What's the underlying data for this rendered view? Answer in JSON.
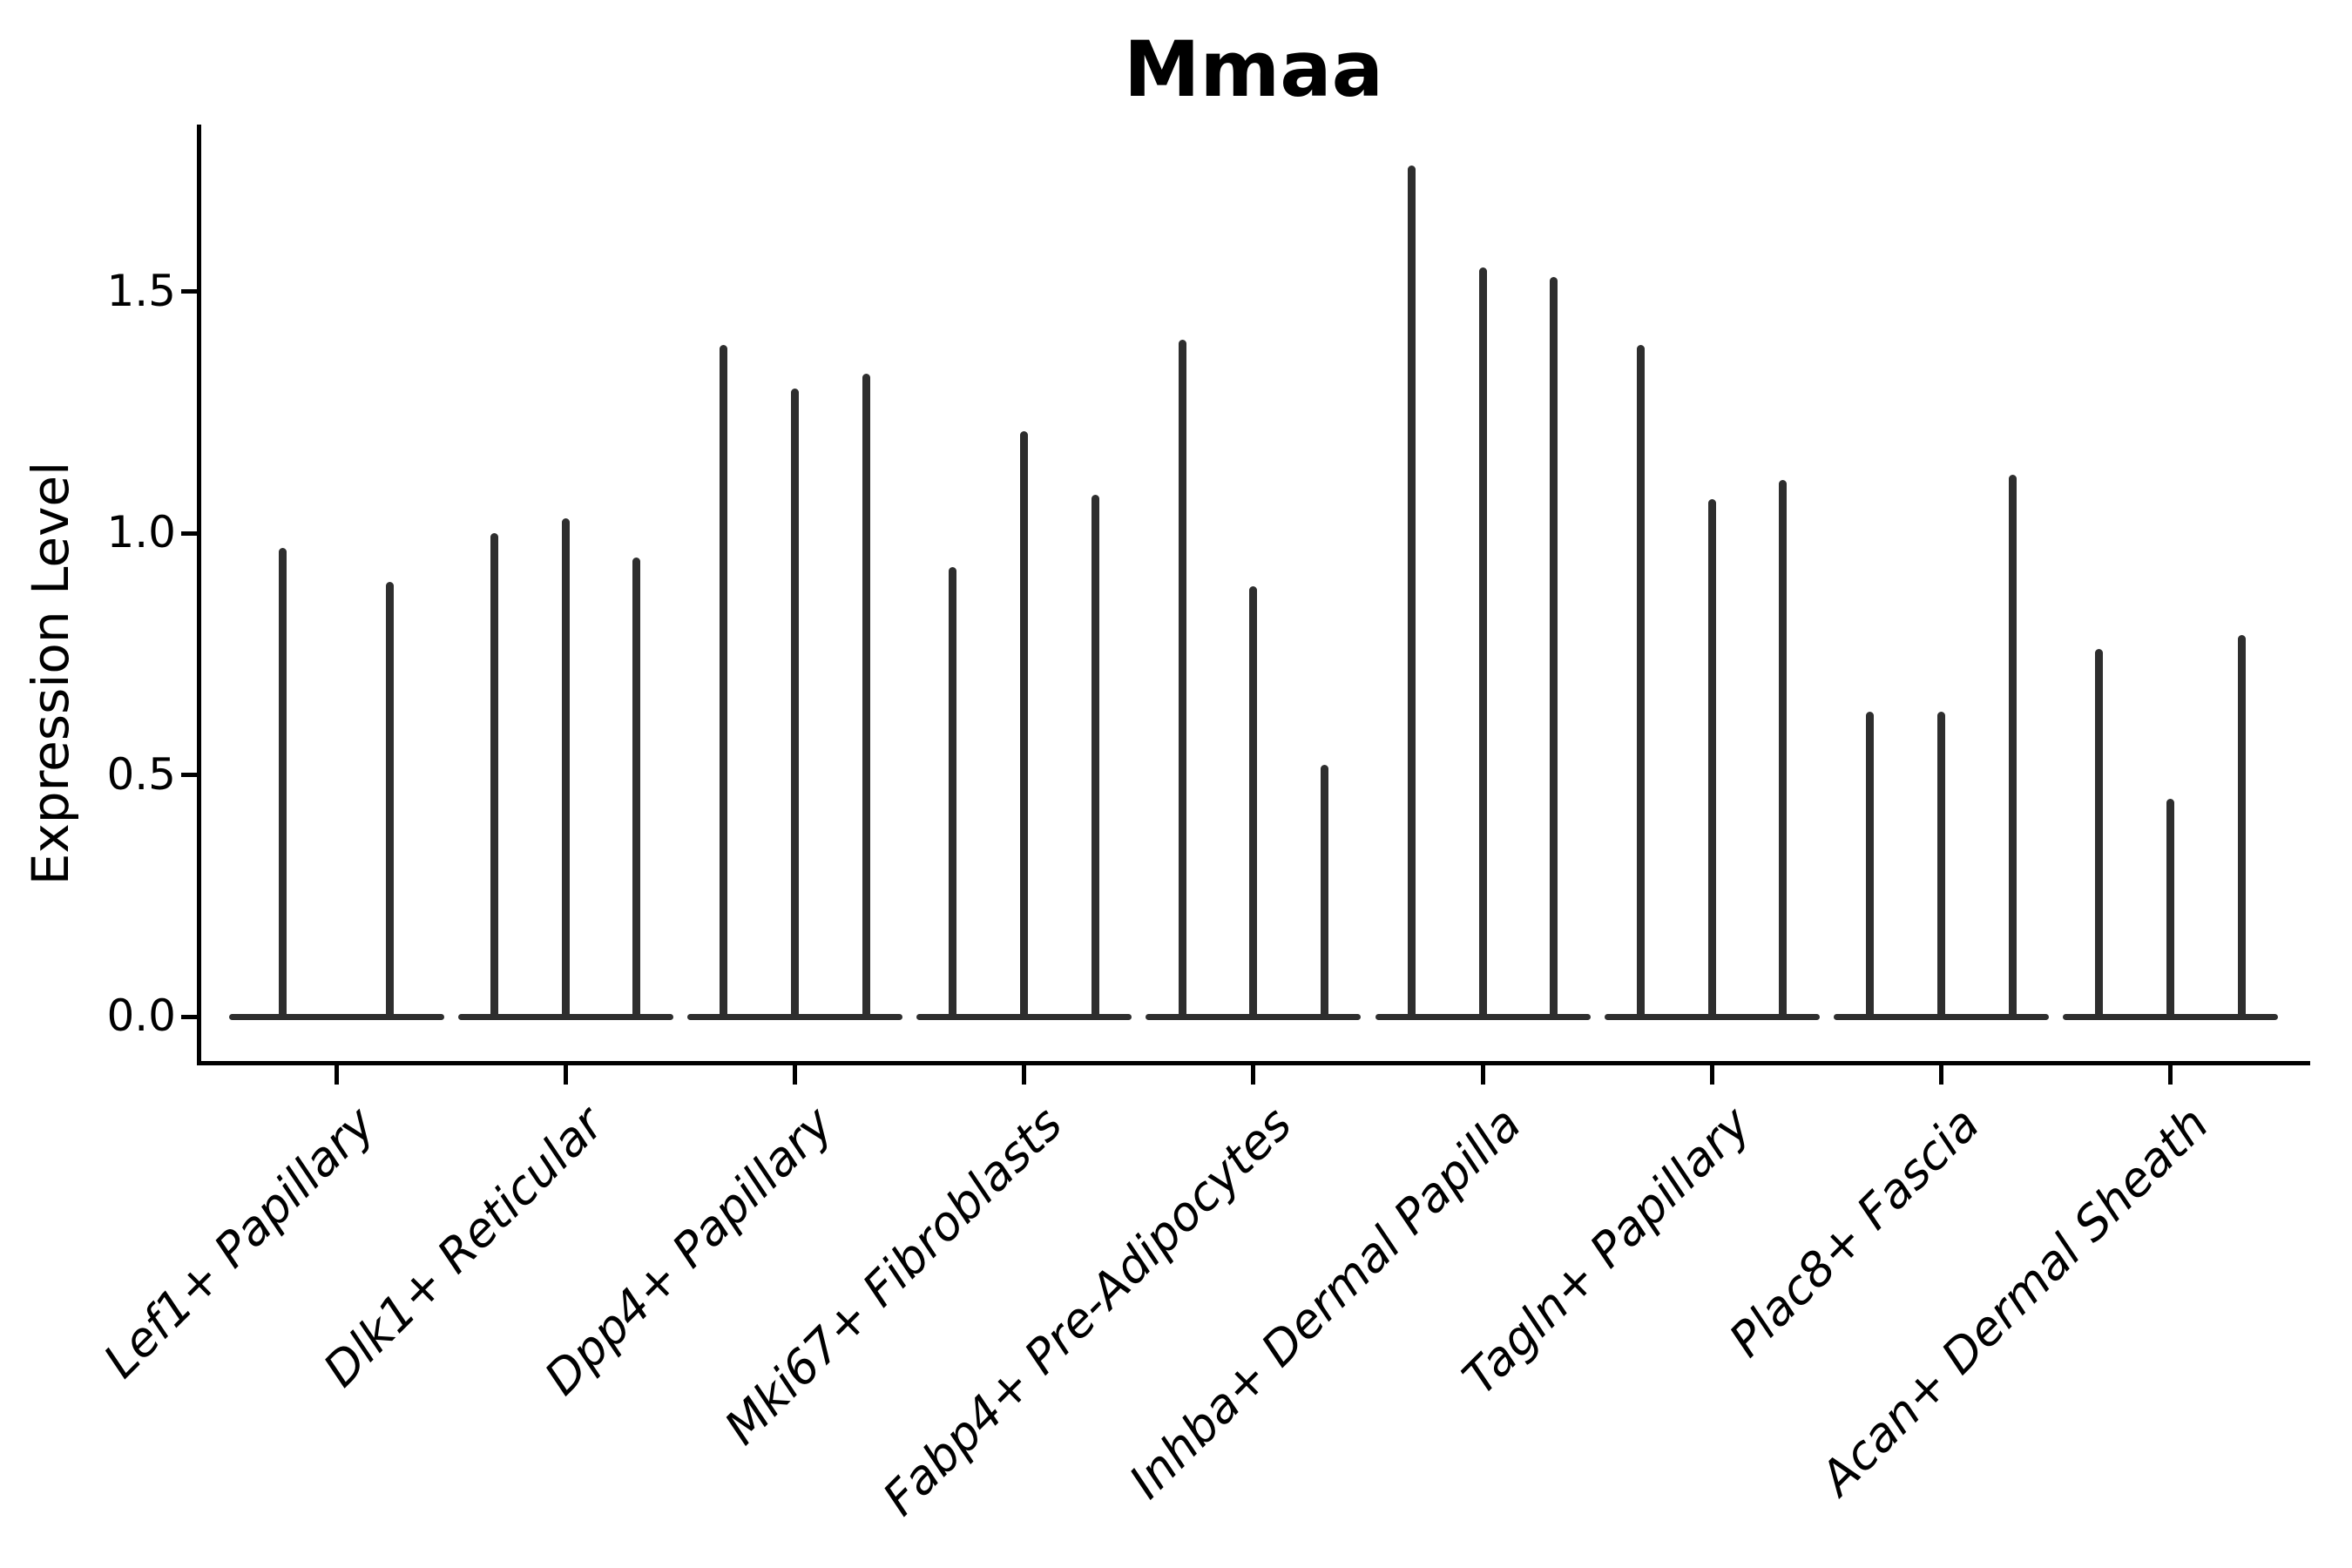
{
  "title": "Mmaa",
  "style": {
    "background": "#ffffff",
    "violin_color": "#2e2e2e",
    "spine_color": "#000000",
    "text_color": "#000000"
  },
  "chart_data": {
    "type": "violin",
    "title": "Mmaa",
    "xlabel": "",
    "ylabel": "Expression Level",
    "yticks": [
      0.0,
      0.5,
      1.0,
      1.5
    ],
    "ytick_labels": [
      "0.0",
      "0.5",
      "1.0",
      "1.5"
    ],
    "ylim": [
      -0.09,
      1.85
    ],
    "grid": false,
    "legend": "none",
    "description": "Violin plot of Mmaa expression; each category holds narrow spike-shaped violins (split groups) rising from a flat base at 0; values are the max expression level reached by each spike.",
    "categories": [
      "Lef1+ Papillary",
      "Dlk1+ Reticular",
      "Dpp4+ Papillary",
      "Mki67+ Fibroblasts",
      "Fabp4+ Pre-Adipocytes",
      "Inhba+ Dermal Papilla",
      "Tagln+ Papillary",
      "Plac8+ Fascia",
      "Acan+ Dermal Sheath"
    ],
    "groups": [
      {
        "label": "Lef1+ Papillary",
        "violin_maxima": [
          0.97,
          0.9
        ]
      },
      {
        "label": "Dlk1+ Reticular",
        "violin_maxima": [
          1.0,
          1.03,
          0.95
        ]
      },
      {
        "label": "Dpp4+ Papillary",
        "violin_maxima": [
          1.39,
          1.3,
          1.33
        ]
      },
      {
        "label": "Mki67+ Fibroblasts",
        "violin_maxima": [
          0.93,
          1.21,
          1.08
        ]
      },
      {
        "label": "Fabp4+ Pre-Adipocytes",
        "violin_maxima": [
          1.4,
          0.89,
          0.52
        ]
      },
      {
        "label": "Inhba+ Dermal Papilla",
        "violin_maxima": [
          1.76,
          1.55,
          1.53
        ]
      },
      {
        "label": "Tagln+ Papillary",
        "violin_maxima": [
          1.39,
          1.07,
          1.11
        ]
      },
      {
        "label": "Plac8+ Fascia",
        "violin_maxima": [
          0.63,
          0.63,
          1.12
        ]
      },
      {
        "label": "Acan+ Dermal Sheath",
        "violin_maxima": [
          0.76,
          0.45,
          0.79
        ]
      }
    ]
  }
}
